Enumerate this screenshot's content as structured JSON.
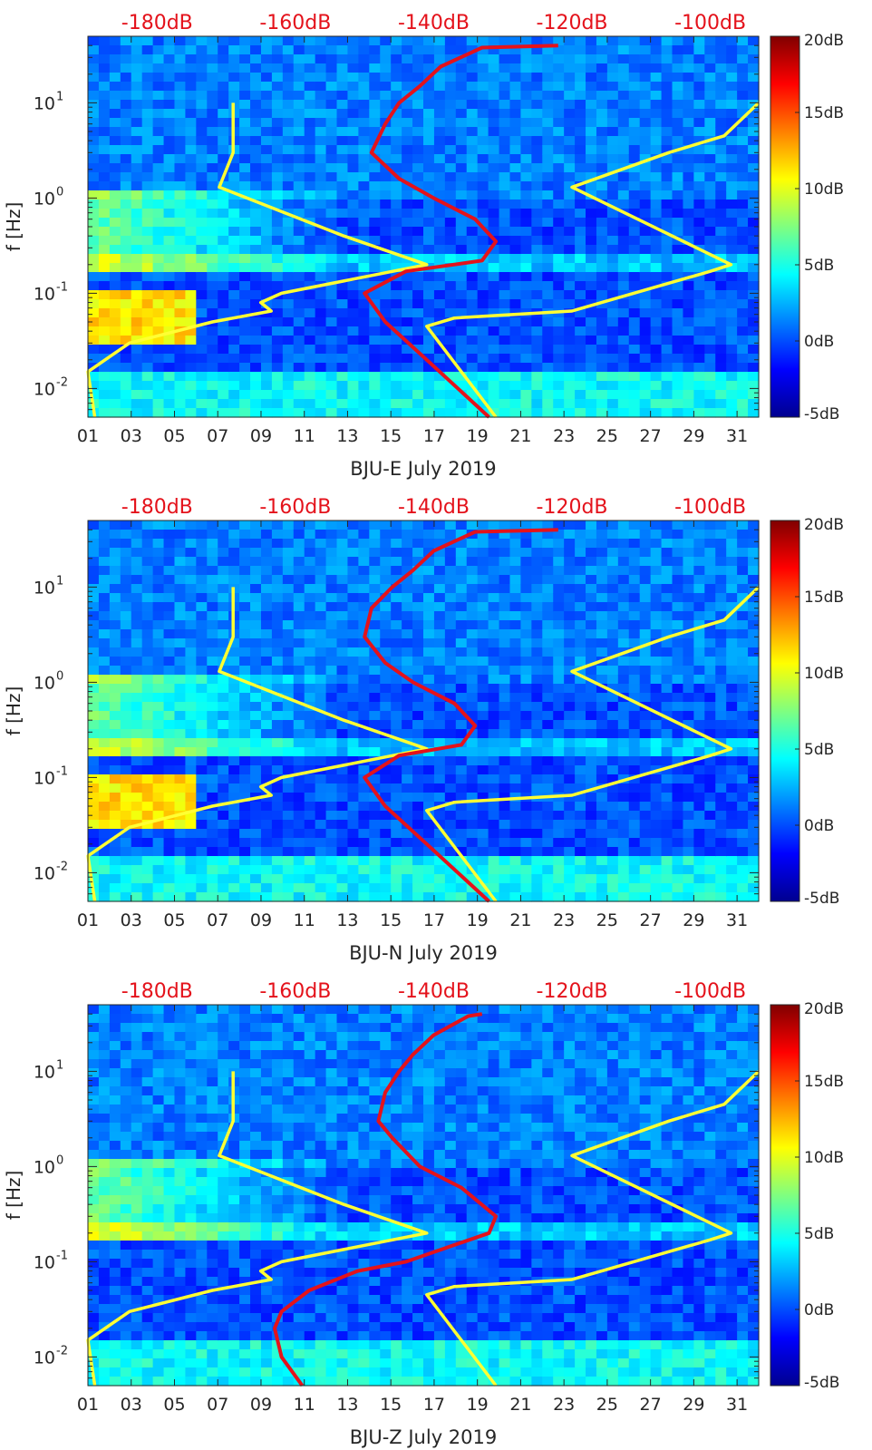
{
  "chart_data": [
    {
      "type": "heatmap",
      "station": "BJU-E",
      "xlabel": "BJU-E July 2019",
      "ylabel": "f [Hz]",
      "x_range_days": [
        1,
        32
      ],
      "y_range_hz": [
        0.005,
        50
      ],
      "y_scale": "log",
      "x_ticks": [
        "01",
        "03",
        "05",
        "07",
        "09",
        "11",
        "13",
        "15",
        "17",
        "19",
        "21",
        "23",
        "25",
        "27",
        "29",
        "31"
      ],
      "y_ticks": [
        "10",
        "10",
        "10",
        "10"
      ],
      "y_tick_exponents": [
        "-2",
        "-1",
        "0",
        "1"
      ],
      "y_tick_values": [
        0.01,
        0.1,
        1,
        10
      ],
      "top_axis": {
        "ticks": [
          "-180dB",
          "-160dB",
          "-140dB",
          "-120dB",
          "-100dB"
        ],
        "values": [
          -180,
          -160,
          -140,
          -120,
          -100
        ],
        "range": [
          -190,
          -93
        ]
      },
      "colorbar": {
        "range": [
          -5,
          20
        ],
        "ticks": [
          "20dB",
          "15dB",
          "10dB",
          "5dB",
          "0dB",
          "-5dB"
        ],
        "values": [
          20,
          15,
          10,
          5,
          0,
          -5
        ]
      },
      "grid": false,
      "series": [
        {
          "color": "#ffff33",
          "style": "noise-model-low",
          "points": [
            [
              -189,
              0.005
            ],
            [
              -190,
              0.015
            ],
            [
              -184,
              0.03
            ],
            [
              -172,
              0.05
            ],
            [
              -163.5,
              0.065
            ],
            [
              -165,
              0.08
            ],
            [
              -162,
              0.1
            ],
            [
              -141,
              0.2
            ],
            [
              -153,
              0.4
            ],
            [
              -171,
              1.3
            ],
            [
              -169,
              3
            ],
            [
              -169,
              10
            ]
          ]
        },
        {
          "color": "#ffff33",
          "style": "noise-model-high",
          "points": [
            [
              -131,
              0.005
            ],
            [
              -141,
              0.045
            ],
            [
              -137,
              0.055
            ],
            [
              -120,
              0.065
            ],
            [
              -100,
              0.17
            ],
            [
              -97,
              0.2
            ],
            [
              -120,
              1.3
            ],
            [
              -106,
              3
            ],
            [
              -98,
              4.5
            ],
            [
              -93,
              10
            ]
          ]
        },
        {
          "color": "#e4121b",
          "style": "psd-curve",
          "points": [
            [
              -132,
              0.005
            ],
            [
              -141,
              0.02
            ],
            [
              -147,
              0.05
            ],
            [
              -150,
              0.1
            ],
            [
              -144,
              0.17
            ],
            [
              -133,
              0.22
            ],
            [
              -131,
              0.35
            ],
            [
              -134,
              0.6
            ],
            [
              -140,
              1.0
            ],
            [
              -145,
              1.6
            ],
            [
              -149,
              3
            ],
            [
              -147,
              6
            ],
            [
              -145,
              10
            ],
            [
              -142,
              15
            ],
            [
              -139,
              24
            ],
            [
              -133,
              38
            ],
            [
              -122,
              40
            ]
          ]
        }
      ]
    },
    {
      "type": "heatmap",
      "station": "BJU-N",
      "xlabel": "BJU-N July 2019",
      "ylabel": "f [Hz]",
      "x_range_days": [
        1,
        32
      ],
      "y_range_hz": [
        0.005,
        50
      ],
      "y_scale": "log",
      "x_ticks": [
        "01",
        "03",
        "05",
        "07",
        "09",
        "11",
        "13",
        "15",
        "17",
        "19",
        "21",
        "23",
        "25",
        "27",
        "29",
        "31"
      ],
      "y_ticks": [
        "10",
        "10",
        "10",
        "10"
      ],
      "y_tick_exponents": [
        "-2",
        "-1",
        "0",
        "1"
      ],
      "y_tick_values": [
        0.01,
        0.1,
        1,
        10
      ],
      "top_axis": {
        "ticks": [
          "-180dB",
          "-160dB",
          "-140dB",
          "-120dB",
          "-100dB"
        ],
        "values": [
          -180,
          -160,
          -140,
          -120,
          -100
        ],
        "range": [
          -190,
          -93
        ]
      },
      "colorbar": {
        "range": [
          -5,
          20
        ],
        "ticks": [
          "20dB",
          "15dB",
          "10dB",
          "5dB",
          "0dB",
          "-5dB"
        ],
        "values": [
          20,
          15,
          10,
          5,
          0,
          -5
        ]
      },
      "grid": false,
      "series": [
        {
          "color": "#ffff33",
          "style": "noise-model-low",
          "points": [
            [
              -189,
              0.005
            ],
            [
              -190,
              0.015
            ],
            [
              -184,
              0.03
            ],
            [
              -172,
              0.05
            ],
            [
              -163.5,
              0.065
            ],
            [
              -165,
              0.08
            ],
            [
              -162,
              0.1
            ],
            [
              -141,
              0.2
            ],
            [
              -153,
              0.4
            ],
            [
              -171,
              1.3
            ],
            [
              -169,
              3
            ],
            [
              -169,
              10
            ]
          ]
        },
        {
          "color": "#ffff33",
          "style": "noise-model-high",
          "points": [
            [
              -131,
              0.005
            ],
            [
              -141,
              0.045
            ],
            [
              -137,
              0.055
            ],
            [
              -120,
              0.065
            ],
            [
              -100,
              0.17
            ],
            [
              -97,
              0.2
            ],
            [
              -120,
              1.3
            ],
            [
              -106,
              3
            ],
            [
              -98,
              4.5
            ],
            [
              -93,
              10
            ]
          ]
        },
        {
          "color": "#e4121b",
          "style": "psd-curve",
          "points": [
            [
              -132,
              0.005
            ],
            [
              -141,
              0.02
            ],
            [
              -147,
              0.05
            ],
            [
              -150,
              0.1
            ],
            [
              -145,
              0.17
            ],
            [
              -136,
              0.22
            ],
            [
              -134,
              0.35
            ],
            [
              -137,
              0.6
            ],
            [
              -143,
              1.0
            ],
            [
              -147,
              1.6
            ],
            [
              -150,
              3
            ],
            [
              -149,
              6
            ],
            [
              -146,
              10
            ],
            [
              -143,
              15
            ],
            [
              -140,
              24
            ],
            [
              -134,
              38
            ],
            [
              -122,
              40
            ]
          ]
        }
      ]
    },
    {
      "type": "heatmap",
      "station": "BJU-Z",
      "xlabel": "BJU-Z July 2019",
      "ylabel": "f [Hz]",
      "x_range_days": [
        1,
        32
      ],
      "y_range_hz": [
        0.005,
        50
      ],
      "y_scale": "log",
      "x_ticks": [
        "01",
        "03",
        "05",
        "07",
        "09",
        "11",
        "13",
        "15",
        "17",
        "19",
        "21",
        "23",
        "25",
        "27",
        "29",
        "31"
      ],
      "y_ticks": [
        "10",
        "10",
        "10",
        "10"
      ],
      "y_tick_exponents": [
        "-2",
        "-1",
        "0",
        "1"
      ],
      "y_tick_values": [
        0.01,
        0.1,
        1,
        10
      ],
      "top_axis": {
        "ticks": [
          "-180dB",
          "-160dB",
          "-140dB",
          "-120dB",
          "-100dB"
        ],
        "values": [
          -180,
          -160,
          -140,
          -120,
          -100
        ],
        "range": [
          -190,
          -93
        ]
      },
      "colorbar": {
        "range": [
          -5,
          20
        ],
        "ticks": [
          "20dB",
          "15dB",
          "10dB",
          "5dB",
          "0dB",
          "-5dB"
        ],
        "values": [
          20,
          15,
          10,
          5,
          0,
          -5
        ]
      },
      "grid": false,
      "series": [
        {
          "color": "#ffff33",
          "style": "noise-model-low",
          "points": [
            [
              -189,
              0.005
            ],
            [
              -190,
              0.015
            ],
            [
              -184,
              0.03
            ],
            [
              -172,
              0.05
            ],
            [
              -163.5,
              0.065
            ],
            [
              -165,
              0.08
            ],
            [
              -162,
              0.1
            ],
            [
              -141,
              0.2
            ],
            [
              -153,
              0.4
            ],
            [
              -171,
              1.3
            ],
            [
              -169,
              3
            ],
            [
              -169,
              10
            ]
          ]
        },
        {
          "color": "#ffff33",
          "style": "noise-model-high",
          "points": [
            [
              -131,
              0.005
            ],
            [
              -141,
              0.045
            ],
            [
              -137,
              0.055
            ],
            [
              -120,
              0.065
            ],
            [
              -100,
              0.17
            ],
            [
              -97,
              0.2
            ],
            [
              -120,
              1.3
            ],
            [
              -106,
              3
            ],
            [
              -98,
              4.5
            ],
            [
              -93,
              10
            ]
          ]
        },
        {
          "color": "#e4121b",
          "style": "psd-curve",
          "points": [
            [
              -159,
              0.005
            ],
            [
              -162,
              0.01
            ],
            [
              -163,
              0.02
            ],
            [
              -162,
              0.03
            ],
            [
              -158,
              0.05
            ],
            [
              -151,
              0.08
            ],
            [
              -144,
              0.1
            ],
            [
              -137,
              0.15
            ],
            [
              -132,
              0.2
            ],
            [
              -131,
              0.3
            ],
            [
              -136,
              0.6
            ],
            [
              -142,
              1.0
            ],
            [
              -146,
              2
            ],
            [
              -148,
              3
            ],
            [
              -147,
              6
            ],
            [
              -145,
              10
            ],
            [
              -143,
              15
            ],
            [
              -140,
              24
            ],
            [
              -135,
              38
            ],
            [
              -133,
              40
            ]
          ]
        }
      ]
    }
  ]
}
